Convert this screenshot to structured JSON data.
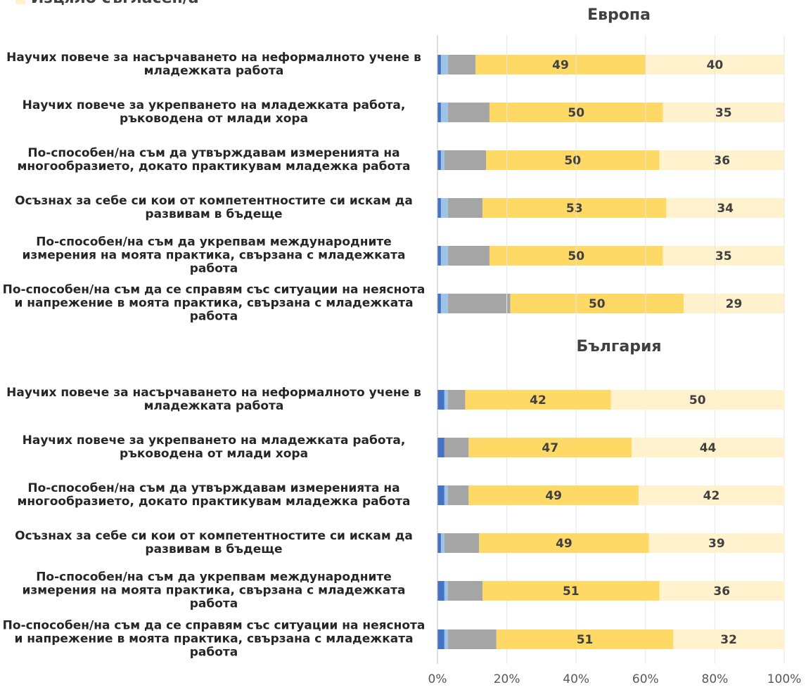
{
  "chart_data": [
    {
      "type": "stacked_barh",
      "title": "Европа",
      "categories": [
        "Научих повече за насърчаването на неформалното учене в младежката работа",
        "Научих повече за укрепването на младежката работа, ръководена от млади хора",
        "По-способен/на съм да утвърждавам измеренията на многообразието, докато практикувам младежка работа",
        "Осъзнах за себе си кои от компетентностите си искам да развивам в бъдеще",
        "По-способен/на съм да укрепвам международните измерения на моята практика, свързана с младежката работа",
        "По-способен/на съм да се справям със ситуации на неяснота и напрежение в моята практика, свързана с младежката работа"
      ],
      "series": [
        {
          "color": "#4472c4",
          "values": [
            1,
            1,
            1,
            1,
            1,
            1
          ]
        },
        {
          "color": "#9dc3e6",
          "values": [
            2,
            2,
            1,
            2,
            2,
            2
          ]
        },
        {
          "color": "#a5a5a5",
          "values": [
            8,
            12,
            12,
            10,
            12,
            18
          ]
        },
        {
          "color": "#ffd966",
          "values": [
            49,
            50,
            50,
            53,
            50,
            50
          ],
          "labels": true
        },
        {
          "name": "Изцяло съгласен/а",
          "color": "#fff2cc",
          "values": [
            40,
            35,
            36,
            34,
            35,
            29
          ],
          "labels": true
        }
      ],
      "xlim": [
        0,
        100
      ]
    },
    {
      "type": "stacked_barh",
      "title": "България",
      "categories": [
        "Научих повече за насърчаването на неформалното учене в младежката работа",
        "Научих повече за укрепването на младежката работа, ръководена от млади хора",
        "По-способен/на съм да утвърждавам измеренията на многообразието, докато практикувам младежка работа",
        "Осъзнах за себе си кои от компетентностите си искам да развивам в бъдеще",
        "По-способен/на съм да укрепвам международните измерения на моята практика, свързана с младежката работа",
        "По-способен/на съм да се справям със ситуации на неяснота и напрежение в моята практика, свързана с младежката работа"
      ],
      "series": [
        {
          "color": "#4472c4",
          "values": [
            2,
            2,
            2,
            1,
            2,
            2
          ]
        },
        {
          "color": "#9dc3e6",
          "values": [
            1,
            0,
            1,
            1,
            1,
            1
          ]
        },
        {
          "color": "#a5a5a5",
          "values": [
            5,
            7,
            6,
            10,
            10,
            14
          ]
        },
        {
          "color": "#ffd966",
          "values": [
            42,
            47,
            49,
            49,
            51,
            51
          ],
          "labels": true
        },
        {
          "color": "#fff2cc",
          "values": [
            50,
            44,
            42,
            39,
            36,
            32
          ],
          "labels": true
        }
      ],
      "xlim": [
        0,
        100
      ],
      "xticks": [
        {
          "value": 0,
          "label": "0%"
        },
        {
          "value": 20,
          "label": "20%"
        },
        {
          "value": 40,
          "label": "40%"
        },
        {
          "value": 60,
          "label": "60%"
        },
        {
          "value": 80,
          "label": "80%"
        },
        {
          "value": 100,
          "label": "100%"
        }
      ],
      "grid": true
    }
  ]
}
